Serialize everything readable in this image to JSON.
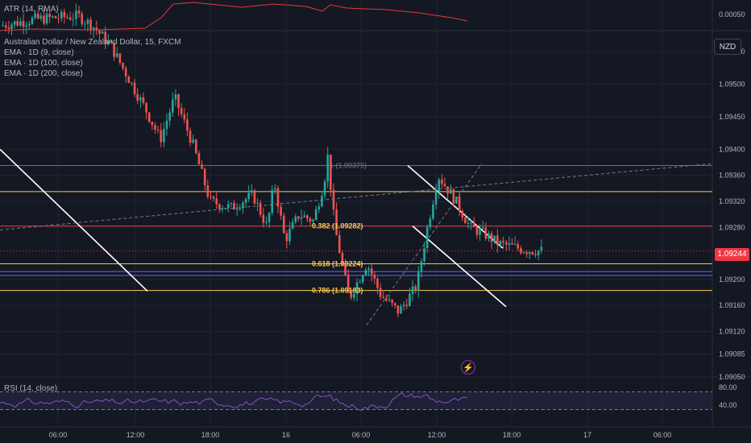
{
  "legend": {
    "title": "Australian Dollar / New Zealand Dollar, 15, FXCM",
    "ema9": "EMA · 1D (9, close)",
    "ema100": "EMA · 1D (100, close)",
    "ema200": "EMA · 1D (200, close)",
    "atr": "ATR (14, RMA)",
    "rsi": "RSI (14, close)"
  },
  "currency_button": "NZD",
  "current_price": "1.09244",
  "colors": {
    "bg": "#141823",
    "grid": "#1f2430",
    "up": "#26a69a",
    "down": "#ef5350",
    "resistance": "#f23645",
    "fib": "#f9c74f",
    "support": "#5b6bf0",
    "rsi": "#7e57c2",
    "white": "#ffffff"
  },
  "chart_data": [
    {
      "type": "candlestick",
      "title": "Australian Dollar / New Zealand Dollar, 15, FXCM",
      "price_axis_ticks": [
        "1.09550",
        "1.09500",
        "1.09450",
        "1.09400",
        "1.09360",
        "1.09320",
        "1.09280",
        "1.09200",
        "1.09160",
        "1.09120",
        "1.09085",
        "1.09050"
      ],
      "time_axis_ticks": [
        "06:00",
        "12:00",
        "18:00",
        "16",
        "06:00",
        "12:00",
        "18:00",
        "17",
        "06:00"
      ],
      "ylim": [
        1.0905,
        1.0958
      ],
      "horizontal_levels": [
        {
          "price": 1.09375,
          "color": "resistance"
        },
        {
          "price": 1.09335,
          "color": "fib"
        },
        {
          "price": 1.09282,
          "color": "resistance"
        },
        {
          "price": 1.09224,
          "color": "fib"
        },
        {
          "price": 1.09212,
          "color": "support"
        },
        {
          "price": 1.09206,
          "color": "support"
        },
        {
          "price": 1.09183,
          "color": "fib"
        }
      ],
      "fib_labels": [
        {
          "text": "0.382 (1.09282)",
          "price": 1.09282
        },
        {
          "text": "0.618 (1.09224)",
          "price": 1.09224
        },
        {
          "text": "0.786 (1.09183)",
          "price": 1.09183
        },
        {
          "text": "1 (1.09375)",
          "price": 1.09375
        }
      ],
      "candle_path": [
        [
          0,
          1.0959
        ],
        [
          0.05,
          1.096
        ],
        [
          0.11,
          1.09605
        ],
        [
          0.13,
          1.0959
        ],
        [
          0.155,
          1.0956
        ],
        [
          0.175,
          1.0952
        ],
        [
          0.205,
          1.0946
        ],
        [
          0.225,
          1.09415
        ],
        [
          0.245,
          1.0948
        ],
        [
          0.27,
          1.0941
        ],
        [
          0.295,
          1.0932
        ],
        [
          0.325,
          1.0931
        ],
        [
          0.355,
          1.0933
        ],
        [
          0.375,
          1.0928
        ],
        [
          0.385,
          1.0935
        ],
        [
          0.4,
          1.0926
        ],
        [
          0.42,
          1.093
        ],
        [
          0.44,
          1.0929
        ],
        [
          0.455,
          1.0935
        ],
        [
          0.46,
          1.0939
        ],
        [
          0.47,
          1.0928
        ],
        [
          0.49,
          1.0917
        ],
        [
          0.515,
          1.09225
        ],
        [
          0.535,
          1.09175
        ],
        [
          0.56,
          1.0915
        ],
        [
          0.585,
          1.0919
        ],
        [
          0.6,
          1.0928
        ],
        [
          0.615,
          1.0936
        ],
        [
          0.64,
          1.0932
        ],
        [
          0.66,
          1.0928
        ],
        [
          0.68,
          1.0927
        ],
        [
          0.7,
          1.09255
        ],
        [
          0.72,
          1.0925
        ],
        [
          0.74,
          1.09245
        ],
        [
          0.76,
          1.09244
        ]
      ]
    },
    {
      "type": "line",
      "title": "ATR (14, RMA)",
      "price_axis_ticks": [
        "0.00050"
      ]
    },
    {
      "type": "line",
      "title": "RSI (14, close)",
      "price_axis_ticks": [
        "80.00",
        "40.00"
      ],
      "ylim": [
        0,
        100
      ],
      "bands": [
        30,
        70
      ]
    }
  ]
}
